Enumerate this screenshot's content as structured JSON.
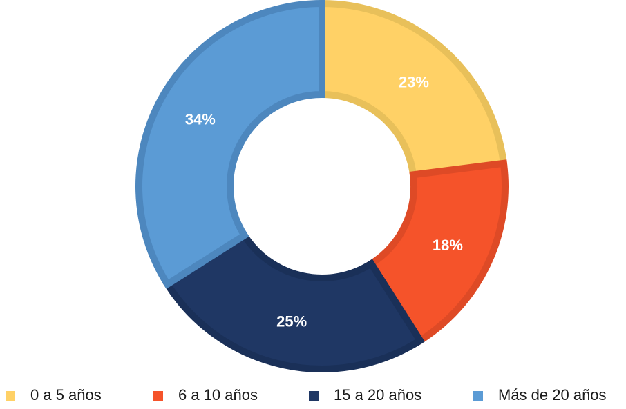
{
  "chart_data": {
    "type": "pie",
    "variant": "donut",
    "title": "",
    "legend_position": "bottom",
    "series": [
      {
        "name": "0 a 5 años",
        "value": 23,
        "label": "23%",
        "color": "#FFD166",
        "stroke": "#E8C05A"
      },
      {
        "name": "6 a 10 años",
        "value": 18,
        "label": "18%",
        "color": "#F5532A",
        "stroke": "#DE4A26"
      },
      {
        "name": "15 a 20 años",
        "value": 25,
        "label": "25%",
        "color": "#1F3764",
        "stroke": "#1A3058"
      },
      {
        "name": "Más de 20 años",
        "value": 34,
        "label": "34%",
        "color": "#5B9BD5",
        "stroke": "#4D87BE"
      }
    ]
  }
}
